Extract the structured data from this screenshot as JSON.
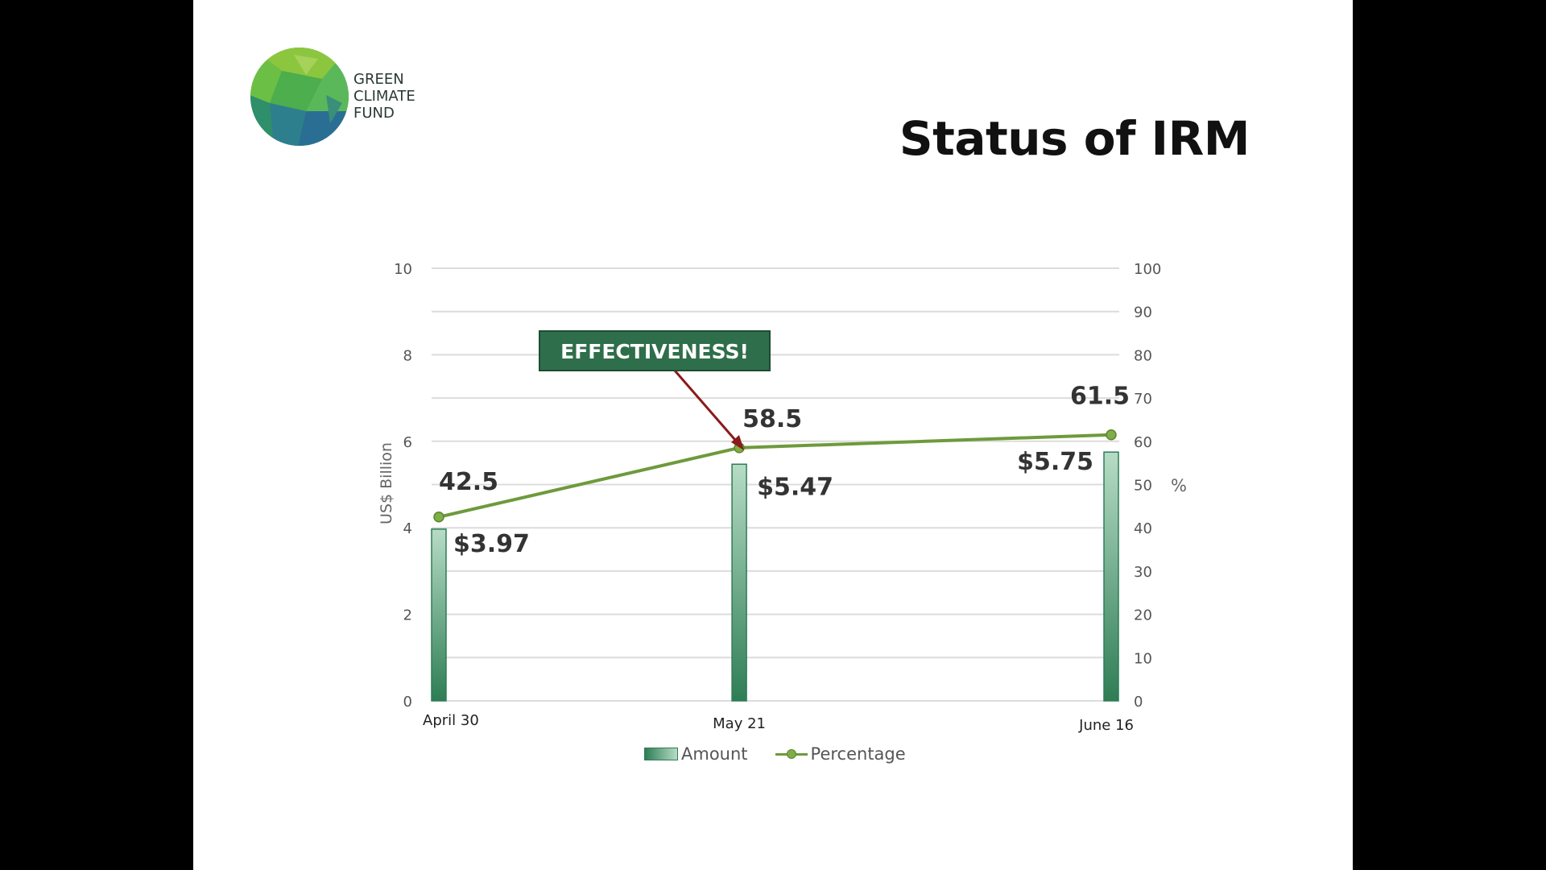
{
  "slide": {
    "title": "Status of IRM",
    "logo": {
      "lines": [
        "GREEN",
        "CLIMATE",
        "FUND"
      ]
    },
    "callout": "EFFECTIVENESS!"
  },
  "colors": {
    "bar_dark": "#2e7d55",
    "bar_light": "#b7dcc6",
    "line": "#6e9a3c",
    "marker": "#7fae46",
    "callout_bg": "#2f6e4a",
    "arrow": "#8b1a1a",
    "grid": "#dcdcdc"
  },
  "chart_data": {
    "type": "bar",
    "categories": [
      "April 30",
      "May 21",
      "June 16"
    ],
    "x_positions_days": [
      0,
      21,
      47
    ],
    "ylabel": "US$ Billion",
    "y2label": "%",
    "ylim": [
      0,
      10
    ],
    "y_ticks": [
      "0",
      "2",
      "4",
      "6",
      "8",
      "10"
    ],
    "y2lim": [
      0,
      100
    ],
    "y2_ticks": [
      "0",
      "10",
      "20",
      "30",
      "40",
      "50",
      "60",
      "70",
      "80",
      "90",
      "100"
    ],
    "grid": true,
    "legend": "bottom",
    "series": [
      {
        "name": "Amount",
        "type": "bar",
        "axis": "left",
        "values": [
          3.97,
          5.47,
          5.75
        ],
        "labels": [
          "$3.97",
          "$5.47",
          "$5.75"
        ]
      },
      {
        "name": "Percentage",
        "type": "line",
        "axis": "right",
        "values": [
          42.5,
          58.5,
          61.5
        ],
        "labels": [
          "42.5",
          "58.5",
          "61.5"
        ]
      }
    ]
  }
}
